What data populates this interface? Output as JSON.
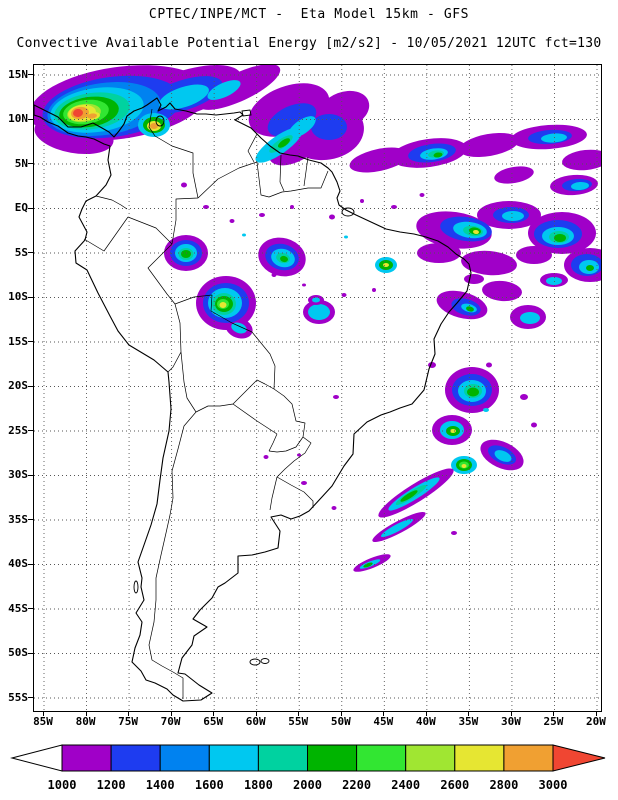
{
  "header": {
    "line1": "CPTEC/INPE/MCT -  Eta Model 15km - GFS",
    "line2": "Convective Available Potential Energy [m2/s2] - 10/05/2021 12UTC fct=130"
  },
  "map": {
    "lat_ticks": [
      "15N",
      "10N",
      "5N",
      "EQ",
      "5S",
      "10S",
      "15S",
      "20S",
      "25S",
      "30S",
      "35S",
      "40S",
      "45S",
      "50S",
      "55S"
    ],
    "lon_ticks": [
      "85W",
      "80W",
      "75W",
      "70W",
      "65W",
      "60W",
      "55W",
      "50W",
      "45W",
      "40W",
      "35W",
      "30W",
      "25W",
      "20W"
    ]
  },
  "colorbar": {
    "labels": [
      "1000",
      "1200",
      "1400",
      "1600",
      "1800",
      "2000",
      "2200",
      "2400",
      "2600",
      "2800",
      "3000"
    ],
    "colors": [
      "#a000c8",
      "#1e3cf0",
      "#0082f0",
      "#00c8f0",
      "#00d2a0",
      "#00b400",
      "#32e632",
      "#a0e632",
      "#e6e632",
      "#f0a032"
    ],
    "under_color": "#ffffff",
    "over_color": "#f04632"
  },
  "chart_data": {
    "type": "heatmap",
    "title": "Convective Available Potential Energy [m2/s2]",
    "source": "CPTEC/INPE/MCT",
    "model": "Eta Model 15km - GFS",
    "valid": "10/05/2021 12UTC fct=130",
    "colorbar_values": [
      1000,
      1200,
      1400,
      1600,
      1800,
      2000,
      2200,
      2400,
      2600,
      2800,
      3000
    ],
    "colorbar_colors": [
      "#a000c8",
      "#1e3cf0",
      "#0082f0",
      "#00c8f0",
      "#00d2a0",
      "#00b400",
      "#32e632",
      "#a0e632",
      "#e6e632",
      "#f0a032"
    ],
    "x_tick_labels": [
      "85W",
      "80W",
      "75W",
      "70W",
      "65W",
      "60W",
      "55W",
      "50W",
      "45W",
      "40W",
      "35W",
      "30W",
      "25W",
      "20W"
    ],
    "y_tick_labels": [
      "15N",
      "10N",
      "5N",
      "EQ",
      "5S",
      "10S",
      "15S",
      "20S",
      "25S",
      "30S",
      "35S",
      "40S",
      "45S",
      "50S",
      "55S"
    ],
    "legend_position": "bottom",
    "grid": true
  }
}
